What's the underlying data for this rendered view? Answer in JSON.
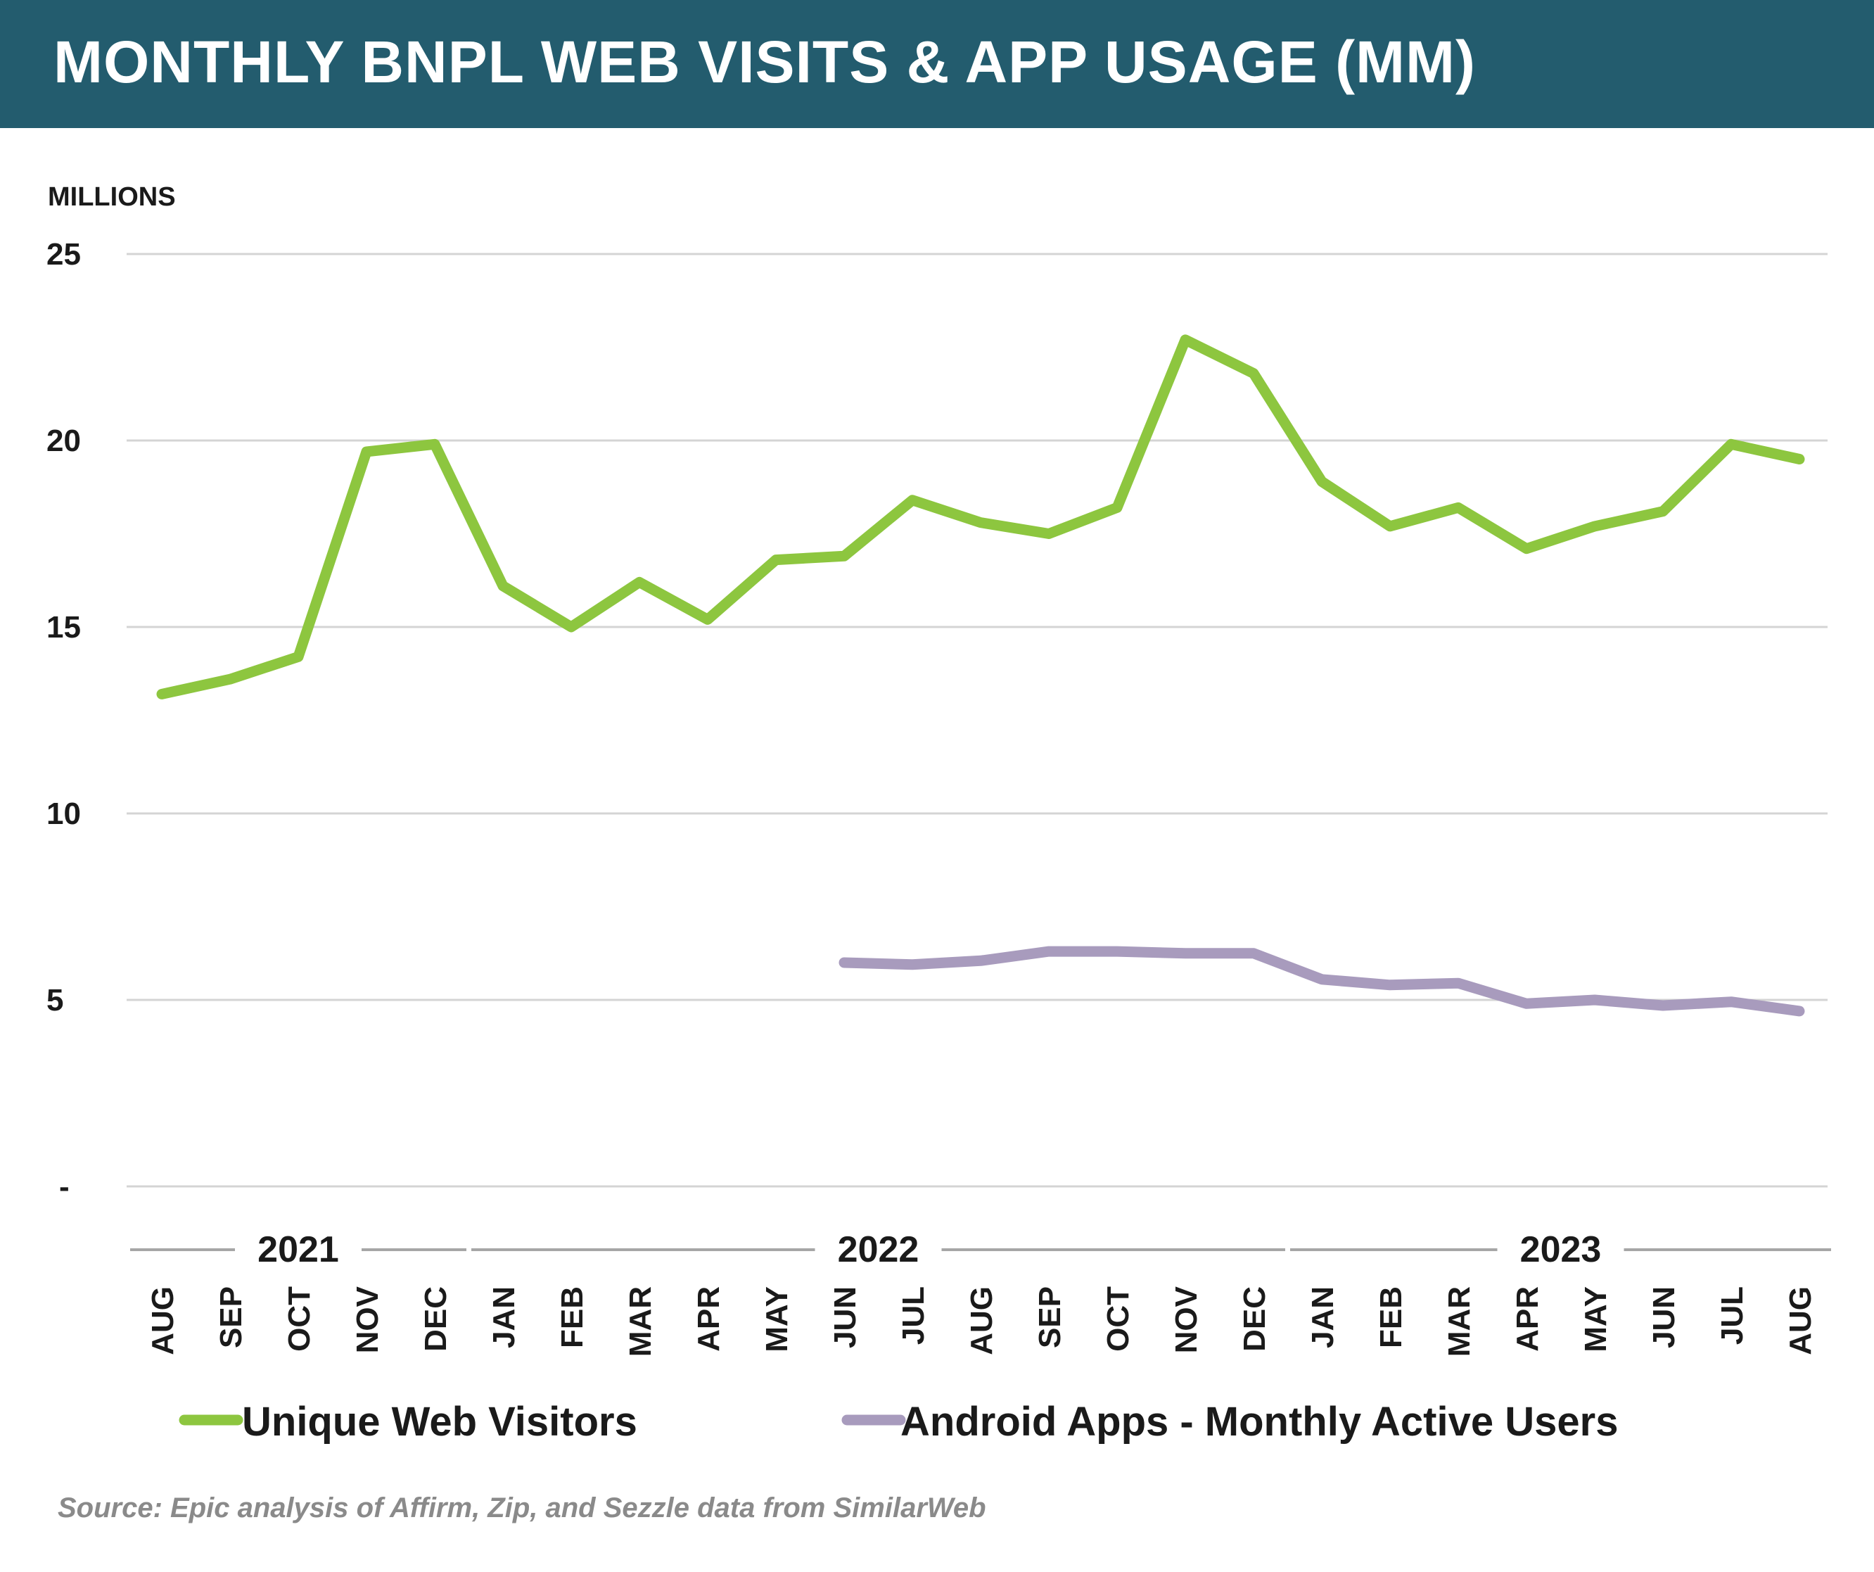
{
  "header": {
    "title": "MONTHLY BNPL WEB VISITS & APP USAGE (MM)"
  },
  "source": "Source: Epic analysis of Affirm, Zip, and Sezzle data from SimilarWeb",
  "colors": {
    "title_bar": "#235c6e",
    "web_visitors": "#8dc63f",
    "android_mau": "#a89bbd",
    "grid": "#d4d4d4",
    "year_rule": "#a6a6a6"
  },
  "chart_data": {
    "type": "line",
    "ylabel": "MILLIONS",
    "ylim": [
      0,
      25
    ],
    "yticks": [
      {
        "value": 0,
        "label": "-"
      },
      {
        "value": 5,
        "label": "5"
      },
      {
        "value": 10,
        "label": "10"
      },
      {
        "value": 15,
        "label": "15"
      },
      {
        "value": 20,
        "label": "20"
      },
      {
        "value": 25,
        "label": "25"
      }
    ],
    "grid": true,
    "legend_position": "bottom",
    "categories": [
      "AUG",
      "SEP",
      "OCT",
      "NOV",
      "DEC",
      "JAN",
      "FEB",
      "MAR",
      "APR",
      "MAY",
      "JUN",
      "JUL",
      "AUG",
      "SEP",
      "OCT",
      "NOV",
      "DEC",
      "JAN",
      "FEB",
      "MAR",
      "APR",
      "MAY",
      "JUN",
      "JUL",
      "AUG"
    ],
    "year_groups": [
      {
        "label": "2021",
        "start": 0,
        "end": 4
      },
      {
        "label": "2022",
        "start": 5,
        "end": 16
      },
      {
        "label": "2023",
        "start": 17,
        "end": 24
      }
    ],
    "series": [
      {
        "name": "Unique Web Visitors",
        "color": "#8dc63f",
        "values": [
          13.2,
          13.6,
          14.2,
          19.7,
          19.9,
          16.1,
          15.0,
          16.2,
          15.2,
          16.8,
          16.9,
          18.4,
          17.8,
          17.5,
          18.2,
          22.7,
          21.8,
          18.9,
          17.7,
          18.2,
          17.1,
          17.7,
          18.1,
          19.9,
          19.5
        ]
      },
      {
        "name": "Android Apps - Monthly Active Users",
        "color": "#a89bbd",
        "values": [
          null,
          null,
          null,
          null,
          null,
          null,
          null,
          null,
          null,
          null,
          6.0,
          5.95,
          6.05,
          6.3,
          6.3,
          6.25,
          6.25,
          5.55,
          5.4,
          5.45,
          4.9,
          5.0,
          4.85,
          4.95,
          4.7
        ]
      }
    ]
  }
}
